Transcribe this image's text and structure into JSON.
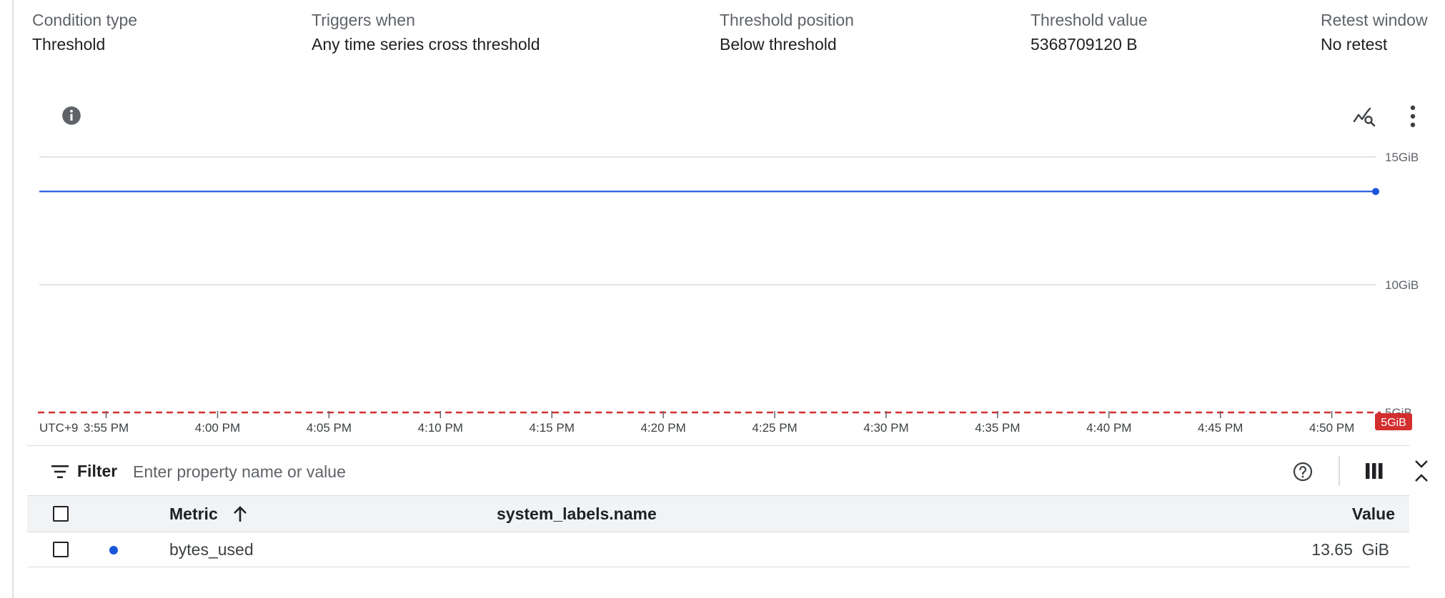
{
  "summary": {
    "condition_type": {
      "label": "Condition type",
      "value": "Threshold"
    },
    "triggers_when": {
      "label": "Triggers when",
      "value": "Any time series cross threshold"
    },
    "threshold_position": {
      "label": "Threshold position",
      "value": "Below threshold"
    },
    "threshold_value": {
      "label": "Threshold value",
      "value": "5368709120 B"
    },
    "retest_window": {
      "label": "Retest window",
      "value": "No retest"
    }
  },
  "chart_toolbar": {
    "info_icon": "info-icon",
    "explore_icon": "explore-query-icon",
    "more_icon": "more-vert-icon"
  },
  "chart_data": {
    "type": "line",
    "timezone_label": "UTC+9",
    "x_tick_labels": [
      "3:55 PM",
      "4:00 PM",
      "4:05 PM",
      "4:10 PM",
      "4:15 PM",
      "4:20 PM",
      "4:25 PM",
      "4:30 PM",
      "4:35 PM",
      "4:40 PM",
      "4:45 PM",
      "4:50 PM"
    ],
    "x_range_minutes": [
      0,
      60
    ],
    "x_ticks_minutes": [
      3,
      8,
      13,
      18,
      23,
      28,
      33,
      38,
      43,
      48,
      53,
      58
    ],
    "y_tick_labels": [
      "15GiB",
      "10GiB",
      "5GiB"
    ],
    "y_ticks": [
      15,
      10,
      5
    ],
    "ylim": [
      5,
      15
    ],
    "y_unit": "GiB",
    "series": [
      {
        "color": "#1a56db",
        "x_minutes": [
          0,
          60
        ],
        "values": [
          13.65,
          13.65
        ]
      }
    ],
    "threshold": {
      "value": 5,
      "label": "5GiB",
      "color": "#d32f2f",
      "style": "dashed"
    },
    "grid": true
  },
  "filter": {
    "label": "Filter",
    "placeholder": "Enter property name or value"
  },
  "table": {
    "headers": {
      "metric": "Metric",
      "system_labels_name": "system_labels.name",
      "value": "Value"
    },
    "sort": {
      "column": "Metric",
      "direction": "ascending"
    },
    "rows": [
      {
        "series_color": "#1a56db",
        "metric": "bytes_used",
        "system_labels_name": "",
        "value": "13.65  GiB"
      }
    ]
  }
}
